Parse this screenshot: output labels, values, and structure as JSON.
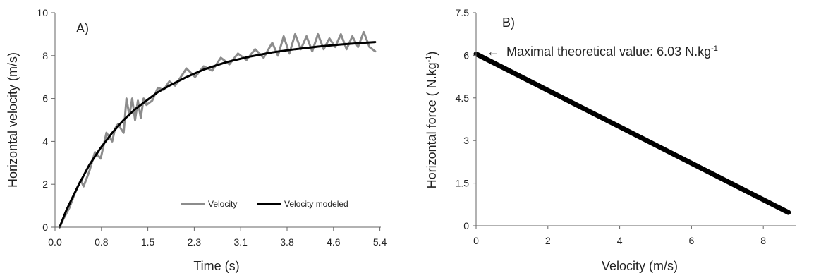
{
  "chart_data": [
    {
      "type": "line",
      "panel_label": "A)",
      "xlabel": "Time (s)",
      "ylabel": "Horizontal velocity (m/s)",
      "xticks": [
        "0.0",
        "0.8",
        "1.5",
        "2.3",
        "3.1",
        "3.8",
        "4.6",
        "5.4"
      ],
      "yticks": [
        "0",
        "2",
        "4",
        "6",
        "8",
        "10"
      ],
      "xlim": [
        0,
        5.7
      ],
      "ylim": [
        0,
        10
      ],
      "grid": false,
      "legend_position": "bottom-right",
      "series": [
        {
          "name": "Velocity",
          "color": "#8c8c8c",
          "x": [
            0.08,
            0.15,
            0.25,
            0.35,
            0.45,
            0.5,
            0.6,
            0.7,
            0.8,
            0.9,
            1.0,
            1.05,
            1.1,
            1.2,
            1.25,
            1.3,
            1.35,
            1.4,
            1.45,
            1.5,
            1.55,
            1.6,
            1.7,
            1.8,
            1.9,
            2.0,
            2.1,
            2.2,
            2.3,
            2.45,
            2.6,
            2.75,
            2.9,
            3.05,
            3.2,
            3.35,
            3.5,
            3.65,
            3.8,
            3.9,
            4.0,
            4.1,
            4.2,
            4.3,
            4.4,
            4.5,
            4.6,
            4.7,
            4.8,
            4.9,
            5.0,
            5.1,
            5.2,
            5.3,
            5.4,
            5.5,
            5.6
          ],
          "values": [
            0.0,
            0.4,
            0.9,
            1.6,
            2.2,
            1.9,
            2.6,
            3.5,
            3.2,
            4.4,
            4.0,
            4.6,
            4.8,
            4.4,
            6.0,
            5.2,
            6.0,
            5.0,
            5.9,
            5.1,
            6.0,
            5.7,
            5.9,
            6.5,
            6.4,
            6.8,
            6.6,
            7.0,
            7.4,
            7.0,
            7.5,
            7.3,
            7.9,
            7.6,
            8.1,
            7.8,
            8.3,
            7.9,
            8.6,
            8.0,
            8.9,
            8.1,
            9.0,
            8.3,
            8.9,
            8.2,
            9.0,
            8.3,
            8.8,
            8.4,
            9.0,
            8.3,
            8.9,
            8.4,
            9.1,
            8.4,
            8.2
          ]
        },
        {
          "name": "Velocity modeled",
          "color": "#000000",
          "x": [
            0.08,
            0.2,
            0.4,
            0.6,
            0.8,
            1.0,
            1.2,
            1.4,
            1.6,
            1.8,
            2.0,
            2.3,
            2.6,
            3.0,
            3.4,
            3.8,
            4.2,
            4.6,
            5.0,
            5.4,
            5.6
          ],
          "values": [
            0.0,
            0.8,
            1.9,
            2.9,
            3.7,
            4.4,
            5.0,
            5.5,
            5.9,
            6.3,
            6.6,
            7.0,
            7.35,
            7.7,
            7.95,
            8.15,
            8.3,
            8.42,
            8.52,
            8.6,
            8.63
          ]
        }
      ]
    },
    {
      "type": "line",
      "panel_label": "B)",
      "xlabel": "Velocity (m/s)",
      "ylabel": "Horizontal force ( N.kg-1)",
      "ylabel_parts": {
        "prefix": "Horizontal force ( N.kg",
        "sup": "-1",
        "suffix": ")"
      },
      "xticks": [
        "0",
        "2",
        "4",
        "6",
        "8"
      ],
      "yticks": [
        "0",
        "1.5",
        "3",
        "4.5",
        "6",
        "7.5"
      ],
      "xlim": [
        0,
        8.9
      ],
      "ylim": [
        0,
        7.5
      ],
      "grid": false,
      "annotation": {
        "arrow": "←",
        "text": "Maximal theoretical value: 6.03 N.kg",
        "sup": "-1",
        "x": 0,
        "y": 6.03
      },
      "series": [
        {
          "color": "#000000",
          "x": [
            0,
            8.7
          ],
          "values": [
            6.05,
            0.47
          ]
        }
      ]
    }
  ]
}
